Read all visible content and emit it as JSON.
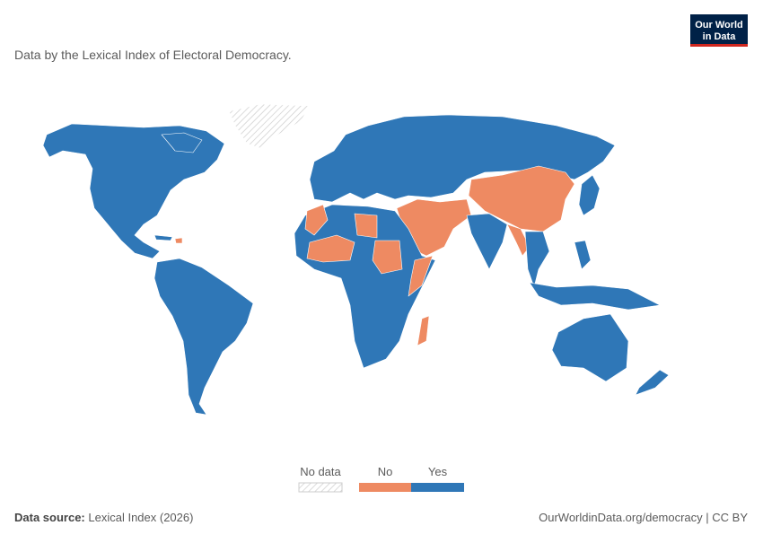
{
  "logo": {
    "lines": [
      "Our World",
      "in Data"
    ]
  },
  "subtitle": "Data by the Lexical Index of Electoral Democracy.",
  "legend": {
    "items": [
      {
        "label": "No data",
        "key": "nodata",
        "color": "#e0e0e0"
      },
      {
        "label": "No",
        "key": "no",
        "color": "#ee8a62"
      },
      {
        "label": "Yes",
        "key": "yes",
        "color": "#2f77b7"
      }
    ]
  },
  "footer": {
    "source_label": "Data source:",
    "source_text": "Lexical Index (2026)",
    "url": "OurWorldinData.org/democracy | CC BY"
  }
}
